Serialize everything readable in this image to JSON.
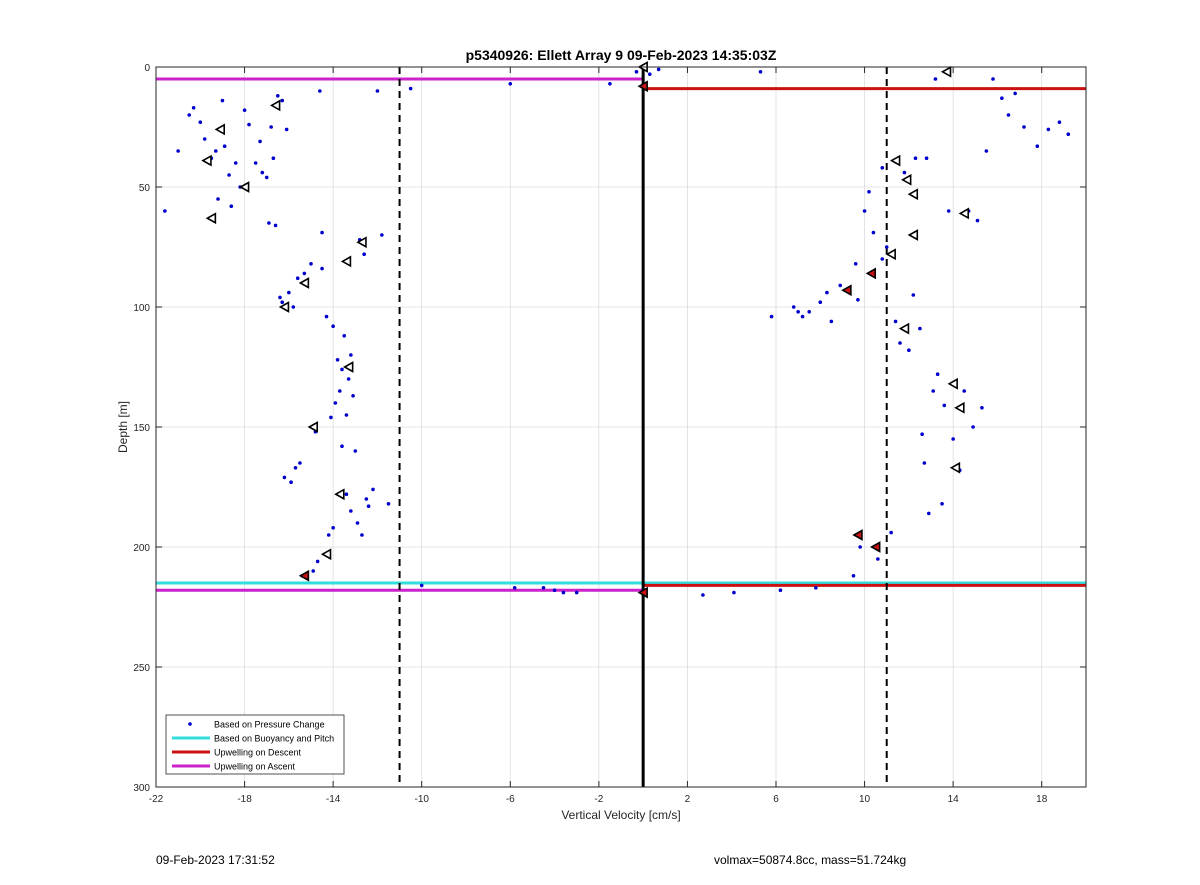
{
  "colors": {
    "points": "#0000cc",
    "buoyancy": "#33dddd",
    "descent": "#cc1111",
    "ascent": "#cc22cc",
    "grid": "#dcdcdc",
    "marker_red": "#cc1111"
  },
  "footer": {
    "timestamp": "09-Feb-2023 17:31:52",
    "stats": "volmax=50874.8cc, mass=51.724kg"
  },
  "chart_data": {
    "type": "scatter",
    "title": "p5340926: Ellett Array 9 09-Feb-2023 14:35:03Z",
    "xlabel": "Vertical Velocity [cm/s]",
    "ylabel": "Depth [m]",
    "xlim": [
      -22,
      20
    ],
    "ylim": [
      0,
      300
    ],
    "y_reversed": true,
    "grid": true,
    "legend_position": "bottom-left",
    "x_ticks": [
      -22,
      -18,
      -14,
      -10,
      -6,
      -2,
      2,
      6,
      10,
      14,
      18
    ],
    "y_ticks": [
      0,
      50,
      100,
      150,
      200,
      250,
      300
    ],
    "legend": [
      {
        "label": "Based on Pressure Change",
        "style": "dot",
        "color_key": "points"
      },
      {
        "label": "Based on Buoyancy and Pitch",
        "style": "line",
        "color_key": "buoyancy"
      },
      {
        "label": "Upwelling on Descent",
        "style": "line",
        "color_key": "descent"
      },
      {
        "label": "Upwelling on Ascent",
        "style": "line",
        "color_key": "ascent"
      }
    ],
    "reference_lines": {
      "zero_line_x": 0,
      "threshold_x": [
        -11,
        11
      ]
    },
    "series": [
      {
        "name": "Based on Pressure Change",
        "points": [
          [
            -21.6,
            60
          ],
          [
            -21,
            35
          ],
          [
            -20.5,
            20
          ],
          [
            -20.3,
            17
          ],
          [
            -20,
            23
          ],
          [
            -19.8,
            30
          ],
          [
            -19.6,
            40
          ],
          [
            -19.5,
            38
          ],
          [
            -19.3,
            35
          ],
          [
            -19.2,
            55
          ],
          [
            -19,
            14
          ],
          [
            -18.9,
            33
          ],
          [
            -18.7,
            45
          ],
          [
            -18.6,
            58
          ],
          [
            -18.4,
            40
          ],
          [
            -18.2,
            50
          ],
          [
            -18,
            18
          ],
          [
            -17.8,
            24
          ],
          [
            -17.5,
            40
          ],
          [
            -17.3,
            31
          ],
          [
            -17.2,
            44
          ],
          [
            -17,
            46
          ],
          [
            -16.9,
            65
          ],
          [
            -16.8,
            25
          ],
          [
            -16.7,
            38
          ],
          [
            -16.6,
            66
          ],
          [
            -16.5,
            12
          ],
          [
            -16.3,
            14
          ],
          [
            -16.1,
            26
          ],
          [
            -16.4,
            96
          ],
          [
            -16.3,
            98
          ],
          [
            -16.2,
            171
          ],
          [
            -16,
            94
          ],
          [
            -15.9,
            173
          ],
          [
            -15.8,
            100
          ],
          [
            -15.7,
            167
          ],
          [
            -15.6,
            88
          ],
          [
            -15.5,
            165
          ],
          [
            -15.4,
            212
          ],
          [
            -15.3,
            86
          ],
          [
            -15.2,
            90
          ],
          [
            -15,
            82
          ],
          [
            -14.9,
            210
          ],
          [
            -14.8,
            152
          ],
          [
            -14.7,
            206
          ],
          [
            -14.5,
            84
          ],
          [
            -14.5,
            69
          ],
          [
            -14.3,
            104
          ],
          [
            -14.2,
            195
          ],
          [
            -14.1,
            146
          ],
          [
            -14,
            192
          ],
          [
            -14,
            108
          ],
          [
            -13.9,
            140
          ],
          [
            -13.8,
            122
          ],
          [
            -13.7,
            135
          ],
          [
            -13.6,
            126
          ],
          [
            -13.6,
            158
          ],
          [
            -13.5,
            112
          ],
          [
            -13.4,
            178
          ],
          [
            -13.4,
            145
          ],
          [
            -13.3,
            130
          ],
          [
            -13.2,
            120
          ],
          [
            -13.2,
            185
          ],
          [
            -13.1,
            137
          ],
          [
            -13,
            160
          ],
          [
            -12.9,
            190
          ],
          [
            -12.8,
            72
          ],
          [
            -12.7,
            195
          ],
          [
            -12.6,
            78
          ],
          [
            -12.5,
            180
          ],
          [
            -12.4,
            183
          ],
          [
            -12.2,
            176
          ],
          [
            -12,
            10
          ],
          [
            -11.8,
            70
          ],
          [
            -11.5,
            182
          ],
          [
            -14.6,
            10
          ],
          [
            -10.5,
            9
          ],
          [
            -10,
            216
          ],
          [
            -6,
            7
          ],
          [
            -5.8,
            217
          ],
          [
            -4.5,
            217
          ],
          [
            -4,
            218
          ],
          [
            -3.6,
            219
          ],
          [
            -3,
            219
          ],
          [
            -1.5,
            7
          ],
          [
            -0.3,
            2
          ],
          [
            0.7,
            1
          ],
          [
            0.3,
            3
          ],
          [
            2.7,
            220
          ],
          [
            4.1,
            219
          ],
          [
            5.3,
            2
          ],
          [
            6.2,
            218
          ],
          [
            5.8,
            104
          ],
          [
            6.8,
            100
          ],
          [
            7,
            102
          ],
          [
            7.2,
            104
          ],
          [
            7.8,
            217
          ],
          [
            7.5,
            102
          ],
          [
            8,
            98
          ],
          [
            8.3,
            94
          ],
          [
            8.5,
            106
          ],
          [
            8.9,
            91
          ],
          [
            9.3,
            93
          ],
          [
            9.5,
            212
          ],
          [
            9.8,
            200
          ],
          [
            9.6,
            82
          ],
          [
            9.7,
            97
          ],
          [
            10,
            60
          ],
          [
            10.2,
            52
          ],
          [
            10.4,
            69
          ],
          [
            10.6,
            205
          ],
          [
            10.8,
            80
          ],
          [
            10.8,
            42
          ],
          [
            11,
            75
          ],
          [
            11.2,
            194
          ],
          [
            11.4,
            106
          ],
          [
            11.6,
            115
          ],
          [
            11.8,
            44
          ],
          [
            12,
            118
          ],
          [
            12.2,
            95
          ],
          [
            12.3,
            38
          ],
          [
            12.5,
            109
          ],
          [
            12.6,
            153
          ],
          [
            12.7,
            165
          ],
          [
            12.8,
            38
          ],
          [
            12.9,
            186
          ],
          [
            13.1,
            135
          ],
          [
            13.2,
            5
          ],
          [
            13.3,
            128
          ],
          [
            13.5,
            182
          ],
          [
            13.6,
            141
          ],
          [
            13.8,
            60
          ],
          [
            14,
            155
          ],
          [
            14.3,
            168
          ],
          [
            14.5,
            135
          ],
          [
            14.7,
            60
          ],
          [
            14.9,
            150
          ],
          [
            15.1,
            64
          ],
          [
            15.3,
            142
          ],
          [
            15.5,
            35
          ],
          [
            15.8,
            5
          ],
          [
            16.2,
            13
          ],
          [
            16.5,
            20
          ],
          [
            16.8,
            11
          ],
          [
            17.2,
            25
          ],
          [
            17.8,
            33
          ],
          [
            18.3,
            26
          ],
          [
            18.8,
            23
          ],
          [
            19.2,
            28
          ]
        ]
      },
      {
        "name": "Based on Buoyancy and Pitch",
        "segments": [
          {
            "x1": -22,
            "x2": 20,
            "y": 215
          }
        ]
      },
      {
        "name": "Upwelling on Descent",
        "segments": [
          {
            "x1": 0,
            "x2": 20,
            "y": 9
          },
          {
            "x1": 0,
            "x2": 20,
            "y": 216
          }
        ]
      },
      {
        "name": "Upwelling on Ascent",
        "segments": [
          {
            "x1": -22,
            "x2": 0,
            "y": 5
          },
          {
            "x1": -22,
            "x2": 0,
            "y": 218
          }
        ]
      }
    ],
    "triangle_markers": [
      [
        -16.6,
        16
      ],
      [
        -19.1,
        26
      ],
      [
        -19.7,
        39
      ],
      [
        -18,
        50
      ],
      [
        -19.5,
        63
      ],
      [
        -12.7,
        73
      ],
      [
        -13.4,
        81
      ],
      [
        -15.3,
        90
      ],
      [
        -16.2,
        100
      ],
      [
        -13.3,
        125
      ],
      [
        -14.9,
        150
      ],
      [
        -13.7,
        178
      ],
      [
        -14.3,
        203
      ],
      [
        0,
        0
      ],
      [
        11.4,
        39
      ],
      [
        11.9,
        47
      ],
      [
        12.2,
        53
      ],
      [
        14.5,
        61
      ],
      [
        12.2,
        70
      ],
      [
        11.2,
        78
      ],
      [
        11.8,
        109
      ],
      [
        14,
        132
      ],
      [
        14.3,
        142
      ],
      [
        14.1,
        167
      ],
      [
        13.7,
        2
      ]
    ],
    "red_markers": [
      [
        -15.3,
        212
      ],
      [
        0,
        8
      ],
      [
        0,
        219
      ],
      [
        10.3,
        86
      ],
      [
        9.2,
        93
      ],
      [
        9.7,
        195
      ],
      [
        10.5,
        200
      ]
    ]
  }
}
